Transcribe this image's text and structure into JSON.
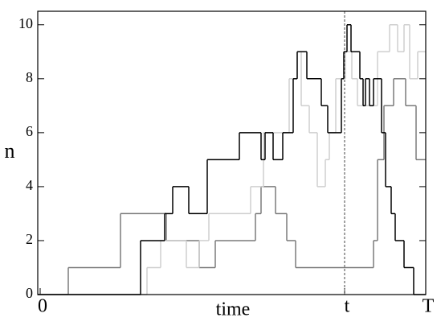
{
  "chart_data": {
    "type": "step",
    "x_label": "time",
    "y_label": "n",
    "xlim": [
      -3,
      480
    ],
    "ylim": [
      0,
      10.5
    ],
    "xticks": [
      {
        "value": 0,
        "label": "0"
      },
      {
        "value": 379,
        "label": "t"
      },
      {
        "value": 480,
        "label": "T"
      }
    ],
    "yticks": [
      0,
      2,
      4,
      6,
      8,
      10
    ],
    "marker_line": {
      "value": 379,
      "style": "dashed"
    },
    "series": [
      {
        "color": "#7a7a7a",
        "x": [
          -3,
          35,
          100,
          157,
          198,
          218,
          268,
          275,
          293,
          307,
          318,
          415,
          420,
          428,
          440,
          455,
          468
        ],
        "values": [
          0,
          1,
          3,
          2,
          1,
          2,
          3,
          4,
          3,
          2,
          1,
          2,
          5,
          7,
          8,
          7,
          5
        ]
      },
      {
        "color": "#cfcfcf",
        "x": [
          -3,
          133,
          150,
          182,
          198,
          210,
          262,
          278,
          310,
          320,
          325,
          335,
          345,
          355,
          360,
          368,
          380,
          388,
          395,
          420,
          435,
          445,
          453,
          460,
          470
        ],
        "values": [
          0,
          1,
          2,
          1,
          2,
          3,
          4,
          6,
          8,
          9,
          7,
          6,
          4,
          5,
          6,
          8,
          9,
          8,
          7,
          9,
          10,
          9,
          10,
          8,
          9
        ]
      },
      {
        "color": "#000000",
        "x": [
          -3,
          125,
          155,
          165,
          185,
          208,
          248,
          275,
          280,
          290,
          302,
          315,
          320,
          332,
          350,
          358,
          375,
          378,
          382,
          387,
          398,
          402,
          405,
          410,
          415,
          425,
          430,
          437,
          442,
          453,
          465
        ],
        "values": [
          0,
          2,
          3,
          4,
          3,
          5,
          6,
          5,
          6,
          5,
          6,
          8,
          9,
          8,
          7,
          6,
          8,
          9,
          10,
          9,
          8,
          7,
          8,
          7,
          8,
          6,
          4,
          3,
          2,
          1,
          0
        ]
      }
    ]
  }
}
